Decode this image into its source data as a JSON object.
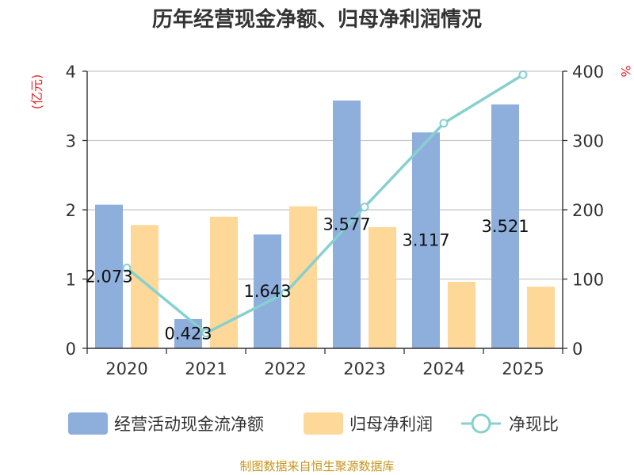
{
  "chart_data": {
    "type": "bar",
    "title": "历年经营现金净额、归母净利润情况",
    "categories": [
      "2020",
      "2021",
      "2022",
      "2023",
      "2024",
      "2025"
    ],
    "series": [
      {
        "name": "经营活动现金流净额",
        "type": "bar",
        "axis": "left",
        "color": "#8eaedc",
        "values": [
          2.073,
          0.423,
          1.643,
          3.577,
          3.117,
          3.521
        ],
        "labels": [
          "2.073",
          "0.423",
          "1.643",
          "3.577",
          "3.117",
          "3.521"
        ]
      },
      {
        "name": "归母净利润",
        "type": "bar",
        "axis": "left",
        "color": "#fdd899",
        "values": [
          1.78,
          1.9,
          2.05,
          1.75,
          0.96,
          0.89
        ]
      },
      {
        "name": "净现比",
        "type": "line",
        "axis": "right",
        "color": "#86d0d0",
        "values": [
          116,
          22,
          80,
          204,
          325,
          395
        ]
      }
    ],
    "y_left": {
      "unit": "(亿元)",
      "ylim": [
        0,
        4
      ],
      "ticks": [
        "0",
        "1",
        "2",
        "3",
        "4"
      ]
    },
    "y_right": {
      "unit": "%",
      "ylim": [
        0,
        400
      ],
      "ticks": [
        "0",
        "100",
        "200",
        "300",
        "400"
      ]
    },
    "legend_position": "bottom",
    "source": "制图数据来自恒生聚源数据库"
  }
}
